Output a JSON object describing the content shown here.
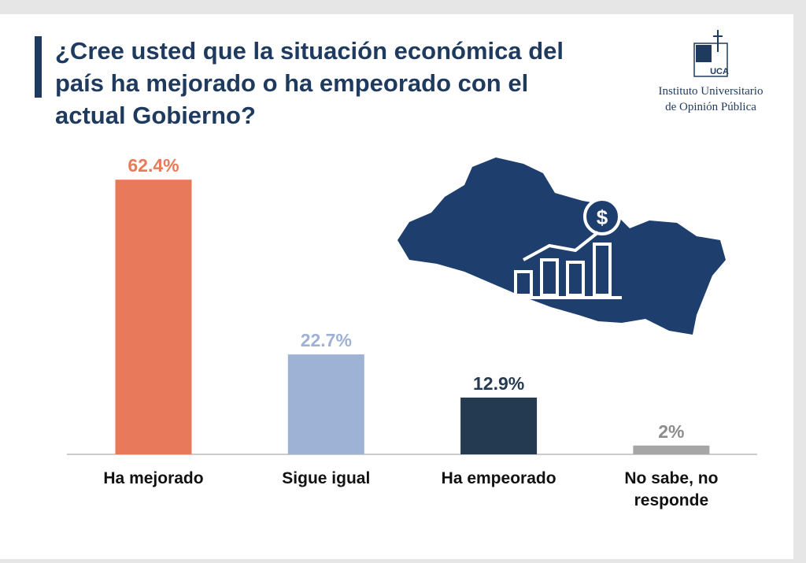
{
  "chart_data": {
    "type": "bar",
    "title": "¿Cree usted que la situación económica del país ha mejorado o ha empeorado con el actual Gobierno?",
    "categories": [
      "Ha mejorado",
      "Sigue igual",
      "Ha empeorado",
      "No sabe, no responde"
    ],
    "values": [
      62.4,
      22.7,
      12.9,
      2
    ],
    "value_labels": [
      "62.4%",
      "22.7%",
      "12.9%",
      "2%"
    ],
    "colors": [
      "#e8795a",
      "#9db2d4",
      "#243a51",
      "#a6a6a6"
    ],
    "logo_mark": "UCA",
    "logo_text": [
      "Instituto Universitario",
      "de Opinión Pública"
    ]
  }
}
